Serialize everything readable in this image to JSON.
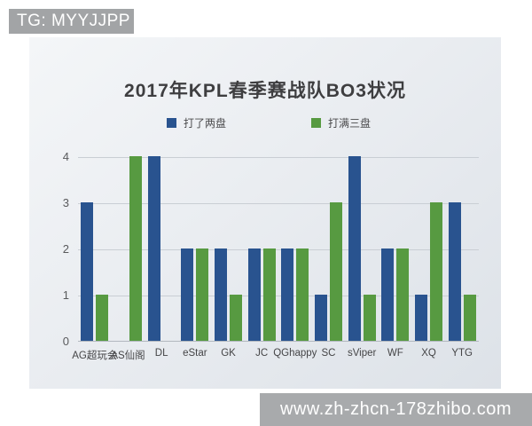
{
  "banner": {
    "text": "TG: MYYJJPP",
    "background": "#a2a4a6"
  },
  "watermark": {
    "text": "www.zh-zhcn-178zhibo.com",
    "background": "#a8aaac"
  },
  "colors": {
    "blue_series": "#29538f",
    "green_series": "#579a41",
    "card_background": "#e8ebef",
    "gridline": "#c9ced4"
  },
  "chart_data": {
    "type": "bar",
    "title": "2017年KPL春季赛战队BO3状况",
    "categories": [
      "AG超玩会",
      "AS仙阁",
      "DL",
      "eStar",
      "GK",
      "JC",
      "QGhappy",
      "SC",
      "sViper",
      "WF",
      "XQ",
      "YTG"
    ],
    "series": [
      {
        "name": "打了两盘",
        "color": "#29538f",
        "values": [
          3,
          0,
          4,
          2,
          2,
          2,
          2,
          1,
          4,
          2,
          1,
          3
        ]
      },
      {
        "name": "打满三盘",
        "color": "#579a41",
        "values": [
          1,
          4,
          0,
          2,
          1,
          2,
          2,
          3,
          1,
          2,
          3,
          1
        ]
      }
    ],
    "xlabel": "",
    "ylabel": "",
    "ylim": [
      0,
      4
    ],
    "yticks": [
      0,
      1,
      2,
      3,
      4
    ],
    "grid": true,
    "legend_position": "top"
  }
}
